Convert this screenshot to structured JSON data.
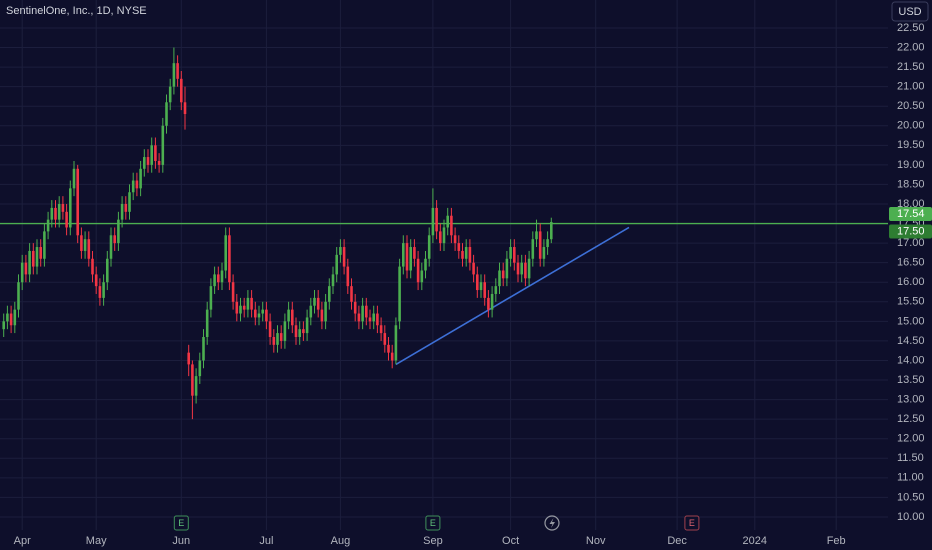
{
  "chart_data": {
    "type": "candlestick",
    "title": "SentinelOne, Inc., 1D, NYSE",
    "currency": "USD",
    "up_color": "#4caf50",
    "down_color": "#f23645",
    "grid": true,
    "xlim": [
      -1,
      239
    ],
    "xticks": [
      {
        "value": 5,
        "label": "Apr"
      },
      {
        "value": 25,
        "label": "May"
      },
      {
        "value": 48,
        "label": "Jun"
      },
      {
        "value": 71,
        "label": "Jul"
      },
      {
        "value": 91,
        "label": "Aug"
      },
      {
        "value": 116,
        "label": "Sep"
      },
      {
        "value": 137,
        "label": "Oct"
      },
      {
        "value": 160,
        "label": "Nov"
      },
      {
        "value": 182,
        "label": "Dec"
      },
      {
        "value": 203,
        "label": "2024"
      },
      {
        "value": 225,
        "label": "Feb"
      }
    ],
    "ylim": [
      9.6,
      23.0
    ],
    "yticks": [
      {
        "value": 10,
        "label": "10.00"
      },
      {
        "value": 10.5,
        "label": "10.50"
      },
      {
        "value": 11,
        "label": "11.00"
      },
      {
        "value": 11.5,
        "label": "11.50"
      },
      {
        "value": 12,
        "label": "12.00"
      },
      {
        "value": 12.5,
        "label": "12.50"
      },
      {
        "value": 13,
        "label": "13.00"
      },
      {
        "value": 13.5,
        "label": "13.50"
      },
      {
        "value": 14,
        "label": "14.00"
      },
      {
        "value": 14.5,
        "label": "14.50"
      },
      {
        "value": 15,
        "label": "15.00"
      },
      {
        "value": 15.5,
        "label": "15.50"
      },
      {
        "value": 16,
        "label": "16.00"
      },
      {
        "value": 16.5,
        "label": "16.50"
      },
      {
        "value": 17,
        "label": "17.00"
      },
      {
        "value": 17.5,
        "label": "17.50"
      },
      {
        "value": 18,
        "label": "18.00"
      },
      {
        "value": 18.5,
        "label": "18.50"
      },
      {
        "value": 19,
        "label": "19.00"
      },
      {
        "value": 19.5,
        "label": "19.50"
      },
      {
        "value": 20,
        "label": "20.00"
      },
      {
        "value": 20.5,
        "label": "20.50"
      },
      {
        "value": 21,
        "label": "21.00"
      },
      {
        "value": 21.5,
        "label": "21.50"
      },
      {
        "value": 22,
        "label": "22.00"
      },
      {
        "value": 22.5,
        "label": "22.50"
      }
    ],
    "hline": {
      "value": 17.5,
      "label": "17.50",
      "color": "#4caf50"
    },
    "trendline": {
      "x": [
        106,
        169
      ],
      "y": [
        13.9,
        17.4
      ],
      "color": "#3d6fd6"
    },
    "events": [
      {
        "x": 48,
        "label": "E"
      },
      {
        "x": 116,
        "label": "E"
      },
      {
        "x": 186,
        "label": "E"
      }
    ],
    "candles": [
      [
        14.8,
        15.2,
        14.6,
        15.0
      ],
      [
        15.0,
        15.4,
        14.8,
        15.2
      ],
      [
        15.2,
        15.4,
        14.7,
        14.9
      ],
      [
        14.9,
        15.5,
        14.7,
        15.3
      ],
      [
        15.3,
        16.2,
        15.1,
        16.0
      ],
      [
        16.0,
        16.7,
        15.8,
        16.5
      ],
      [
        16.5,
        16.7,
        16.0,
        16.2
      ],
      [
        16.2,
        17.0,
        16.0,
        16.8
      ],
      [
        16.8,
        17.0,
        16.2,
        16.4
      ],
      [
        16.4,
        17.1,
        16.2,
        16.9
      ],
      [
        16.9,
        17.1,
        16.4,
        16.6
      ],
      [
        16.6,
        17.5,
        16.4,
        17.3
      ],
      [
        17.3,
        17.8,
        17.1,
        17.6
      ],
      [
        17.6,
        18.1,
        17.4,
        17.9
      ],
      [
        17.9,
        18.1,
        17.4,
        17.6
      ],
      [
        17.6,
        18.2,
        17.4,
        18.0
      ],
      [
        18.0,
        18.2,
        17.6,
        17.8
      ],
      [
        17.8,
        18.0,
        17.2,
        17.4
      ],
      [
        17.4,
        18.6,
        17.2,
        18.4
      ],
      [
        18.4,
        19.1,
        18.2,
        18.9
      ],
      [
        18.9,
        19.0,
        17.0,
        17.2
      ],
      [
        17.2,
        17.4,
        16.6,
        16.8
      ],
      [
        16.8,
        17.3,
        16.6,
        17.1
      ],
      [
        17.1,
        17.3,
        16.4,
        16.6
      ],
      [
        16.6,
        16.8,
        16.0,
        16.2
      ],
      [
        16.2,
        16.4,
        15.7,
        15.9
      ],
      [
        15.9,
        16.1,
        15.4,
        15.6
      ],
      [
        15.6,
        16.2,
        15.4,
        16.0
      ],
      [
        16.0,
        16.8,
        15.8,
        16.6
      ],
      [
        16.6,
        17.4,
        16.4,
        17.2
      ],
      [
        17.2,
        17.4,
        16.8,
        17.0
      ],
      [
        17.0,
        17.8,
        16.8,
        17.6
      ],
      [
        17.6,
        18.2,
        17.4,
        18.0
      ],
      [
        18.0,
        18.2,
        17.6,
        17.8
      ],
      [
        17.8,
        18.5,
        17.6,
        18.3
      ],
      [
        18.3,
        18.8,
        18.1,
        18.6
      ],
      [
        18.6,
        18.8,
        18.2,
        18.4
      ],
      [
        18.4,
        19.1,
        18.2,
        18.9
      ],
      [
        18.9,
        19.4,
        18.7,
        19.2
      ],
      [
        19.2,
        19.4,
        18.8,
        19.0
      ],
      [
        19.0,
        19.7,
        18.8,
        19.5
      ],
      [
        19.5,
        19.7,
        18.9,
        19.1
      ],
      [
        19.1,
        19.3,
        18.8,
        19.0
      ],
      [
        19.0,
        20.2,
        18.8,
        20.0
      ],
      [
        20.0,
        20.8,
        19.8,
        20.6
      ],
      [
        20.6,
        21.2,
        20.4,
        21.0
      ],
      [
        21.0,
        22.0,
        20.8,
        21.6
      ],
      [
        21.6,
        21.8,
        21.0,
        21.2
      ],
      [
        21.2,
        21.4,
        20.4,
        20.6
      ],
      [
        20.6,
        21.0,
        19.9,
        20.3
      ],
      [
        14.2,
        14.4,
        13.6,
        13.9
      ],
      [
        13.9,
        14.0,
        12.5,
        13.1
      ],
      [
        13.1,
        13.8,
        12.9,
        13.6
      ],
      [
        13.6,
        14.2,
        13.4,
        14.0
      ],
      [
        14.0,
        14.8,
        13.8,
        14.6
      ],
      [
        14.6,
        15.5,
        14.4,
        15.3
      ],
      [
        15.3,
        16.1,
        15.1,
        15.9
      ],
      [
        15.9,
        16.4,
        15.7,
        16.2
      ],
      [
        16.2,
        16.4,
        15.8,
        16.0
      ],
      [
        16.0,
        16.5,
        15.8,
        16.3
      ],
      [
        16.3,
        17.4,
        16.1,
        17.2
      ],
      [
        17.2,
        17.4,
        15.8,
        16.0
      ],
      [
        16.0,
        16.2,
        15.3,
        15.5
      ],
      [
        15.5,
        15.7,
        15.0,
        15.2
      ],
      [
        15.2,
        15.6,
        15.0,
        15.4
      ],
      [
        15.4,
        15.6,
        15.1,
        15.3
      ],
      [
        15.3,
        15.8,
        15.1,
        15.6
      ],
      [
        15.6,
        15.8,
        15.1,
        15.3
      ],
      [
        15.3,
        15.5,
        14.9,
        15.1
      ],
      [
        15.1,
        15.4,
        14.9,
        15.2
      ],
      [
        15.2,
        15.5,
        15.0,
        15.3
      ],
      [
        15.3,
        15.5,
        14.8,
        15.0
      ],
      [
        15.0,
        15.2,
        14.4,
        14.6
      ],
      [
        14.6,
        14.8,
        14.2,
        14.4
      ],
      [
        14.4,
        14.9,
        14.2,
        14.7
      ],
      [
        14.7,
        14.9,
        14.3,
        14.5
      ],
      [
        14.5,
        15.2,
        14.3,
        15.0
      ],
      [
        15.0,
        15.5,
        14.8,
        15.3
      ],
      [
        15.3,
        15.5,
        14.7,
        14.9
      ],
      [
        14.9,
        15.1,
        14.4,
        14.6
      ],
      [
        14.6,
        15.0,
        14.4,
        14.8
      ],
      [
        14.8,
        15.0,
        14.5,
        14.7
      ],
      [
        14.7,
        15.3,
        14.5,
        15.1
      ],
      [
        15.1,
        15.6,
        14.9,
        15.4
      ],
      [
        15.4,
        15.8,
        15.2,
        15.6
      ],
      [
        15.6,
        15.8,
        15.1,
        15.3
      ],
      [
        15.3,
        15.5,
        14.8,
        15.0
      ],
      [
        15.0,
        15.7,
        14.8,
        15.5
      ],
      [
        15.5,
        16.1,
        15.3,
        15.9
      ],
      [
        15.9,
        16.4,
        15.7,
        16.2
      ],
      [
        16.2,
        16.9,
        16.0,
        16.7
      ],
      [
        16.7,
        17.1,
        16.5,
        16.9
      ],
      [
        16.9,
        17.1,
        16.2,
        16.4
      ],
      [
        16.4,
        16.6,
        15.7,
        15.9
      ],
      [
        15.9,
        16.1,
        15.3,
        15.5
      ],
      [
        15.5,
        15.7,
        15.0,
        15.2
      ],
      [
        15.2,
        15.4,
        14.8,
        15.0
      ],
      [
        15.0,
        15.6,
        14.8,
        15.4
      ],
      [
        15.4,
        15.6,
        14.9,
        15.1
      ],
      [
        15.1,
        15.3,
        14.8,
        15.0
      ],
      [
        15.0,
        15.4,
        14.8,
        15.2
      ],
      [
        15.2,
        15.4,
        14.7,
        14.9
      ],
      [
        14.9,
        15.1,
        14.5,
        14.7
      ],
      [
        14.7,
        14.9,
        14.2,
        14.4
      ],
      [
        14.4,
        14.6,
        14.0,
        14.2
      ],
      [
        14.2,
        14.4,
        13.8,
        14.0
      ],
      [
        14.0,
        15.1,
        13.9,
        14.9
      ],
      [
        15.0,
        16.6,
        14.8,
        16.4
      ],
      [
        16.4,
        17.2,
        16.2,
        17.0
      ],
      [
        17.0,
        17.2,
        16.1,
        16.3
      ],
      [
        16.3,
        17.1,
        16.1,
        16.9
      ],
      [
        16.9,
        17.1,
        16.4,
        16.6
      ],
      [
        16.6,
        16.8,
        15.8,
        16.0
      ],
      [
        16.0,
        16.5,
        15.8,
        16.3
      ],
      [
        16.3,
        16.8,
        16.1,
        16.6
      ],
      [
        16.6,
        17.4,
        16.4,
        17.2
      ],
      [
        17.2,
        18.4,
        17.0,
        17.9
      ],
      [
        17.9,
        18.1,
        17.1,
        17.3
      ],
      [
        17.3,
        17.5,
        16.8,
        17.0
      ],
      [
        17.0,
        17.6,
        16.8,
        17.4
      ],
      [
        17.4,
        17.9,
        17.2,
        17.7
      ],
      [
        17.7,
        17.9,
        17.0,
        17.2
      ],
      [
        17.2,
        17.4,
        16.8,
        17.0
      ],
      [
        17.0,
        17.2,
        16.6,
        16.8
      ],
      [
        16.8,
        17.0,
        16.4,
        16.6
      ],
      [
        16.6,
        17.1,
        16.4,
        16.9
      ],
      [
        16.9,
        17.1,
        16.3,
        16.5
      ],
      [
        16.5,
        16.7,
        16.0,
        16.2
      ],
      [
        16.2,
        16.4,
        15.6,
        15.8
      ],
      [
        15.8,
        16.2,
        15.6,
        16.0
      ],
      [
        16.0,
        16.2,
        15.4,
        15.6
      ],
      [
        15.6,
        15.8,
        15.1,
        15.3
      ],
      [
        15.3,
        15.9,
        15.1,
        15.7
      ],
      [
        15.7,
        16.1,
        15.5,
        15.9
      ],
      [
        15.9,
        16.5,
        15.7,
        16.3
      ],
      [
        16.3,
        16.5,
        15.9,
        16.1
      ],
      [
        16.1,
        16.8,
        15.9,
        16.6
      ],
      [
        16.6,
        17.1,
        16.4,
        16.9
      ],
      [
        16.9,
        17.1,
        16.3,
        16.5
      ],
      [
        16.5,
        16.7,
        16.0,
        16.2
      ],
      [
        16.2,
        16.7,
        16.0,
        16.5
      ],
      [
        16.5,
        16.7,
        15.9,
        16.1
      ],
      [
        16.1,
        16.8,
        15.9,
        16.6
      ],
      [
        16.6,
        17.3,
        16.4,
        17.1
      ],
      [
        17.1,
        17.6,
        16.9,
        17.3
      ],
      [
        17.3,
        17.5,
        16.4,
        16.6
      ],
      [
        16.6,
        17.1,
        16.4,
        16.9
      ],
      [
        16.9,
        17.3,
        16.7,
        17.1
      ],
      [
        17.1,
        17.65,
        17.0,
        17.54
      ]
    ]
  }
}
